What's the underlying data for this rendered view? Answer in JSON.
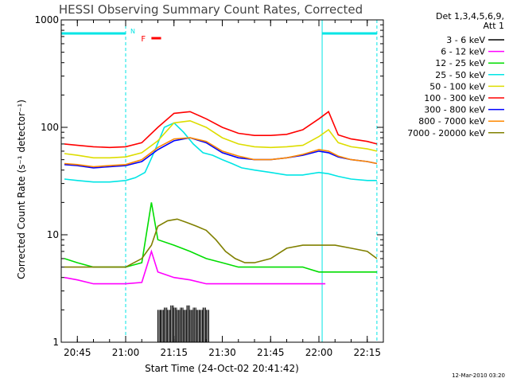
{
  "chart_data": {
    "type": "line",
    "title": "HESSI Observing Summary Count Rates, Corrected",
    "xlabel": "Start Time (24-Oct-02 20:41:42)",
    "ylabel": "Corrected Count Rate (s⁻¹ detector⁻¹)",
    "yscale": "log",
    "ylim": [
      1,
      1000
    ],
    "xlim": [
      "20:40",
      "22:20"
    ],
    "x_ticks": [
      "20:45",
      "21:00",
      "21:15",
      "21:30",
      "21:45",
      "22:00",
      "22:15"
    ],
    "y_ticks": [
      "1",
      "10",
      "100",
      "1000"
    ],
    "legend_header": [
      "Det 1,3,4,5,6,9,",
      "Att 1"
    ],
    "legend_position": "right",
    "generated": "12-Mar-2010 03:20",
    "flag_labels": {
      "night": "N",
      "flare": "F"
    },
    "night_intervals": [
      [
        "20:40",
        "21:00"
      ],
      [
        "22:01",
        "22:18"
      ]
    ],
    "saa_boundaries": [
      "21:00",
      "22:01",
      "22:18"
    ],
    "flare_interval": [
      "21:08",
      "21:11"
    ],
    "series": [
      {
        "name": "3 - 6 keV",
        "color": "#000000",
        "style": "spikes",
        "x": [
          "21:10",
          "21:11",
          "21:12",
          "21:13",
          "21:14",
          "21:15",
          "21:16",
          "21:17",
          "21:18",
          "21:19",
          "21:20",
          "21:21",
          "21:22",
          "21:23",
          "21:24",
          "21:25"
        ],
        "y": [
          2.0,
          2.0,
          2.1,
          2.0,
          2.2,
          2.1,
          2.0,
          2.1,
          2.0,
          2.2,
          2.0,
          2.1,
          2.0,
          2.0,
          2.1,
          2.0
        ]
      },
      {
        "name": "6 - 12 keV",
        "color": "#ff00ff",
        "x": [
          "20:41",
          "20:45",
          "20:50",
          "20:55",
          "21:00",
          "21:05",
          "21:08",
          "21:10",
          "21:15",
          "21:20",
          "21:25",
          "21:30",
          "21:35",
          "21:40",
          "21:45",
          "21:50",
          "21:55",
          "22:00",
          "22:02"
        ],
        "y": [
          4.0,
          3.8,
          3.5,
          3.5,
          3.5,
          3.6,
          7.0,
          4.5,
          4.0,
          3.8,
          3.5,
          3.5,
          3.5,
          3.5,
          3.5,
          3.5,
          3.5,
          3.5,
          3.5
        ]
      },
      {
        "name": "12 - 25 keV",
        "color": "#00dd00",
        "x": [
          "20:41",
          "20:45",
          "20:50",
          "20:55",
          "21:00",
          "21:05",
          "21:08",
          "21:10",
          "21:15",
          "21:20",
          "21:25",
          "21:30",
          "21:35",
          "21:40",
          "21:45",
          "21:50",
          "21:55",
          "22:00",
          "22:05",
          "22:10",
          "22:15",
          "22:18"
        ],
        "y": [
          6.0,
          5.5,
          5.0,
          5.0,
          5.0,
          5.5,
          20.0,
          9.0,
          8.0,
          7.0,
          6.0,
          5.5,
          5.0,
          5.0,
          5.0,
          5.0,
          5.0,
          4.5,
          4.5,
          4.5,
          4.5,
          4.5
        ]
      },
      {
        "name": "25 - 50 keV",
        "color": "#00e5e5",
        "x": [
          "20:41",
          "20:45",
          "20:50",
          "20:55",
          "21:00",
          "21:03",
          "21:06",
          "21:09",
          "21:12",
          "21:15",
          "21:18",
          "21:21",
          "21:24",
          "21:27",
          "21:30",
          "21:33",
          "21:36",
          "21:40",
          "21:45",
          "21:50",
          "21:55",
          "22:00",
          "22:03",
          "22:06",
          "22:10",
          "22:15",
          "22:18"
        ],
        "y": [
          33,
          32,
          31,
          31,
          32,
          34,
          38,
          60,
          100,
          110,
          90,
          70,
          58,
          55,
          50,
          46,
          42,
          40,
          38,
          36,
          36,
          38,
          37,
          35,
          33,
          32,
          32
        ]
      },
      {
        "name": "50 - 100 keV",
        "color": "#dddd00",
        "x": [
          "20:41",
          "20:45",
          "20:50",
          "20:55",
          "21:00",
          "21:05",
          "21:10",
          "21:15",
          "21:20",
          "21:25",
          "21:30",
          "21:35",
          "21:40",
          "21:45",
          "21:50",
          "21:55",
          "22:00",
          "22:03",
          "22:06",
          "22:10",
          "22:15",
          "22:18"
        ],
        "y": [
          57,
          55,
          52,
          52,
          53,
          58,
          75,
          110,
          115,
          100,
          80,
          70,
          66,
          65,
          66,
          68,
          82,
          95,
          72,
          66,
          63,
          60
        ]
      },
      {
        "name": "100 - 300 keV",
        "color": "#ff0000",
        "x": [
          "20:41",
          "20:45",
          "20:50",
          "20:55",
          "21:00",
          "21:05",
          "21:10",
          "21:15",
          "21:20",
          "21:25",
          "21:30",
          "21:35",
          "21:40",
          "21:45",
          "21:50",
          "21:55",
          "22:00",
          "22:03",
          "22:06",
          "22:10",
          "22:15",
          "22:18"
        ],
        "y": [
          70,
          68,
          66,
          65,
          66,
          72,
          100,
          135,
          140,
          120,
          100,
          88,
          84,
          84,
          86,
          95,
          120,
          140,
          85,
          78,
          74,
          70
        ]
      },
      {
        "name": "300 - 800 keV",
        "color": "#0000ff",
        "x": [
          "20:41",
          "20:45",
          "20:50",
          "20:55",
          "21:00",
          "21:05",
          "21:10",
          "21:15",
          "21:20",
          "21:25",
          "21:30",
          "21:35",
          "21:40",
          "21:45",
          "21:50",
          "21:55",
          "22:00",
          "22:03",
          "22:06",
          "22:10",
          "22:15",
          "22:18"
        ],
        "y": [
          45,
          44,
          42,
          43,
          44,
          48,
          62,
          75,
          80,
          72,
          58,
          52,
          50,
          50,
          52,
          55,
          60,
          58,
          53,
          50,
          48,
          46
        ]
      },
      {
        "name": "800 - 7000 keV",
        "color": "#ff8800",
        "x": [
          "20:41",
          "20:45",
          "20:50",
          "20:55",
          "21:00",
          "21:05",
          "21:10",
          "21:15",
          "21:20",
          "21:25",
          "21:30",
          "21:35",
          "21:40",
          "21:45",
          "21:50",
          "21:55",
          "22:00",
          "22:03",
          "22:06",
          "22:10",
          "22:15",
          "22:18"
        ],
        "y": [
          46,
          45,
          43,
          44,
          45,
          50,
          65,
          78,
          80,
          74,
          60,
          54,
          50,
          50,
          52,
          56,
          62,
          60,
          54,
          50,
          48,
          46
        ]
      },
      {
        "name": "7000 - 20000 keV",
        "color": "#808000",
        "x": [
          "20:41",
          "20:45",
          "20:50",
          "20:55",
          "21:00",
          "21:05",
          "21:08",
          "21:10",
          "21:13",
          "21:16",
          "21:19",
          "21:22",
          "21:25",
          "21:28",
          "21:31",
          "21:34",
          "21:37",
          "21:40",
          "21:45",
          "21:50",
          "21:55",
          "22:00",
          "22:05",
          "22:10",
          "22:15",
          "22:18"
        ],
        "y": [
          5.0,
          5.0,
          5.0,
          5.0,
          5.0,
          6.0,
          8.0,
          12.0,
          13.5,
          14.0,
          13.0,
          12.0,
          11.0,
          9.0,
          7.0,
          6.0,
          5.5,
          5.5,
          6.0,
          7.5,
          8.0,
          8.0,
          8.0,
          7.5,
          7.0,
          6.0
        ]
      }
    ]
  }
}
